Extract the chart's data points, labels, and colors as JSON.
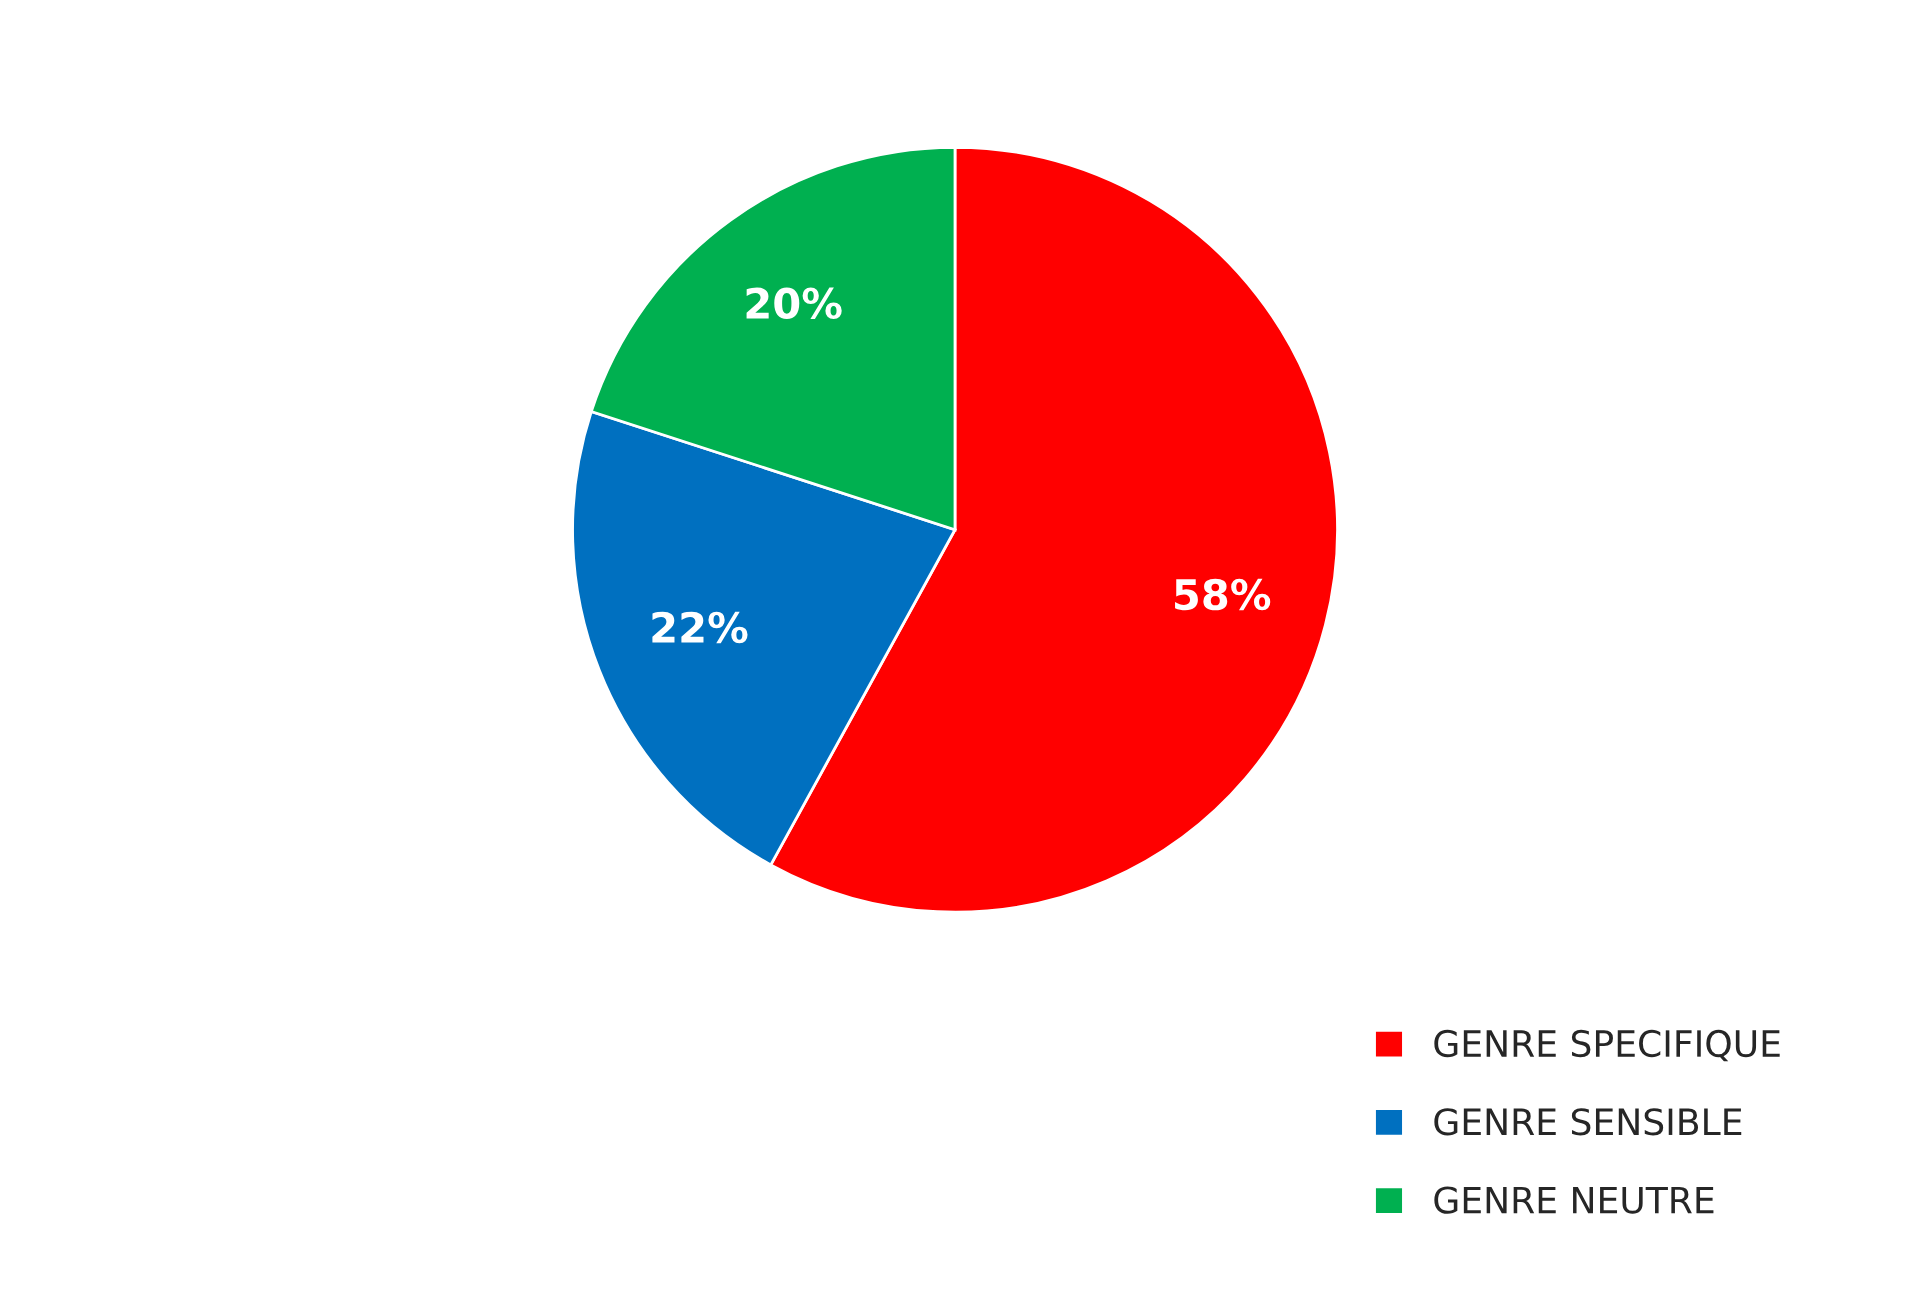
{
  "chart_data": {
    "type": "pie",
    "categories": [
      "GENRE SPECIFIQUE",
      "GENRE SENSIBLE",
      "GENRE NEUTRE"
    ],
    "values": [
      58,
      22,
      20
    ],
    "colors": [
      "#ff0000",
      "#0070c0",
      "#00b050"
    ],
    "value_labels": [
      "58%",
      "22%",
      "20%"
    ],
    "legend": "bottom right"
  }
}
